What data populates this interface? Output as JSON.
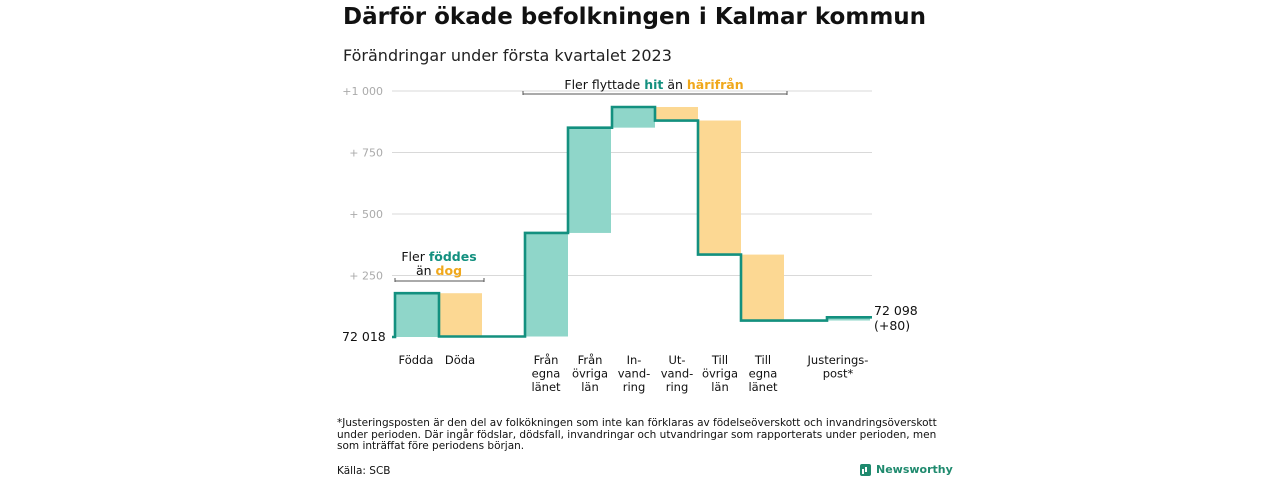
{
  "title": "Därför ökade befolkningen i Kalmar kommun",
  "subtitle": "Förändringar under första kvartalet 2023",
  "colors": {
    "increase": "#8fd6c9",
    "decrease": "#fcd893",
    "line": "#13907f",
    "hit": "#13907f",
    "harifran": "#f0a81c",
    "grid": "#d9d9d9",
    "tick": "#aaaaaa"
  },
  "chart_data": {
    "type": "waterfall",
    "base": 72018,
    "base_label": "72 018",
    "end_label": "72 098",
    "end_change_label": "(+80)",
    "y_ticks": [
      "+1 000",
      "+ 750",
      "+ 500",
      "+ 250"
    ],
    "y_tick_values": [
      1000,
      750,
      500,
      250
    ],
    "ylim": [
      0,
      1000
    ],
    "steps": [
      {
        "label": [
          "Födda"
        ],
        "change": 178,
        "kind": "in"
      },
      {
        "label": [
          "Döda"
        ],
        "change": -176,
        "kind": "out"
      },
      {
        "label": [
          "Från",
          "egna",
          "länet"
        ],
        "change": 421,
        "kind": "in"
      },
      {
        "label": [
          "Från",
          "övriga",
          "län"
        ],
        "change": 428,
        "kind": "in"
      },
      {
        "label": [
          "In-",
          "vand-",
          "ring"
        ],
        "change": 84,
        "kind": "in"
      },
      {
        "label": [
          "Ut-",
          "vand-",
          "ring"
        ],
        "change": -55,
        "kind": "out"
      },
      {
        "label": [
          "Till",
          "övriga",
          "län"
        ],
        "change": -545,
        "kind": "out"
      },
      {
        "label": [
          "Till",
          "egna",
          "länet"
        ],
        "change": -268,
        "kind": "out"
      },
      {
        "label": [
          "Justerings-",
          "post*"
        ],
        "change": 13,
        "kind": "in"
      }
    ],
    "annotations": [
      {
        "parts": [
          {
            "text": "Fler ",
            "style": "normal"
          },
          {
            "text": "föddes",
            "style": "hit"
          }
        ]
      },
      {
        "parts": [
          {
            "text": "än ",
            "style": "normal"
          },
          {
            "text": "dog",
            "style": "harifran"
          }
        ]
      },
      {
        "parts": [
          {
            "text": "Fler flyttade ",
            "style": "normal"
          },
          {
            "text": "hit",
            "style": "hit"
          },
          {
            "text": " än ",
            "style": "normal"
          },
          {
            "text": "härifrån",
            "style": "harifran"
          }
        ]
      }
    ]
  },
  "footnote": "*Justeringsposten är den del av folkökningen som inte kan förklaras av födelseöverskott och invandringsöverskott under perioden. Där ingår födslar, dödsfall, invandringar och utvandringar som rapporterats under perioden, men som inträffat före periodens början.",
  "source": "Källa: SCB",
  "brand": {
    "name": "Newsworthy",
    "icon": "newsworthy-logo-icon"
  }
}
